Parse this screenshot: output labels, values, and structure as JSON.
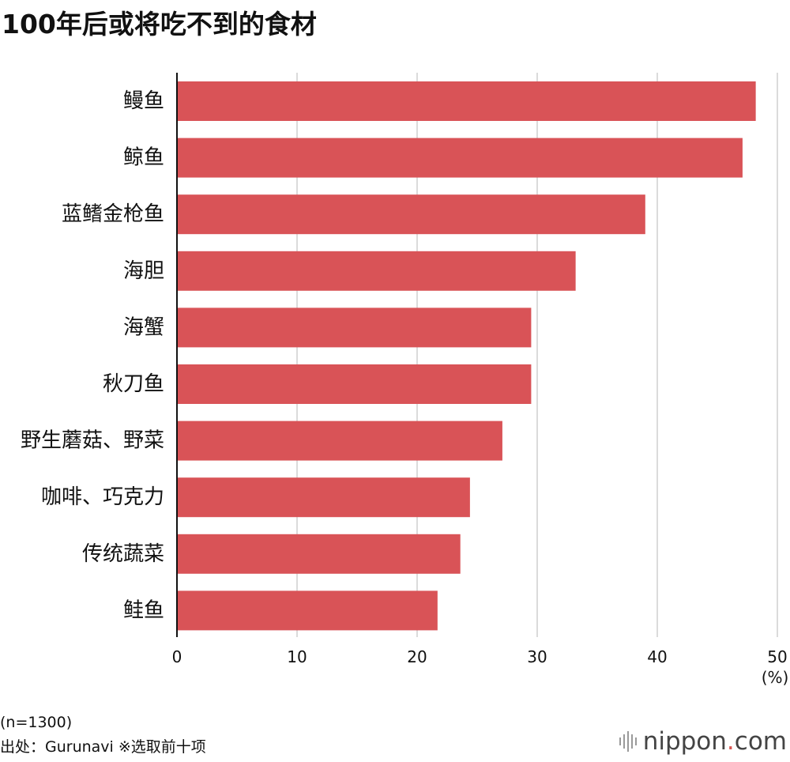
{
  "title": "100年后或将吃不到的食材",
  "chart_data": {
    "type": "bar",
    "orientation": "horizontal",
    "categories": [
      "鳗鱼",
      "鲸鱼",
      "蓝鳍金枪鱼",
      "海胆",
      "海蟹",
      "秋刀鱼",
      "野生蘑菇、野菜",
      "咖啡、巧克力",
      "传统蔬菜",
      "鲑鱼"
    ],
    "values": [
      48.2,
      47.1,
      39.0,
      33.2,
      29.5,
      29.5,
      27.1,
      24.4,
      23.6,
      21.7
    ],
    "xlim": [
      0,
      50
    ],
    "xticks": [
      0,
      10,
      20,
      30,
      40,
      50
    ],
    "unit_label": "(%)",
    "grid": true,
    "bar_color": "#d95357"
  },
  "footnote": {
    "sample": "(n=1300)",
    "source": "出处：Gurunavi ※选取前十项"
  },
  "brand": {
    "name": "nippon",
    "dot": ".",
    "tld": "com"
  }
}
